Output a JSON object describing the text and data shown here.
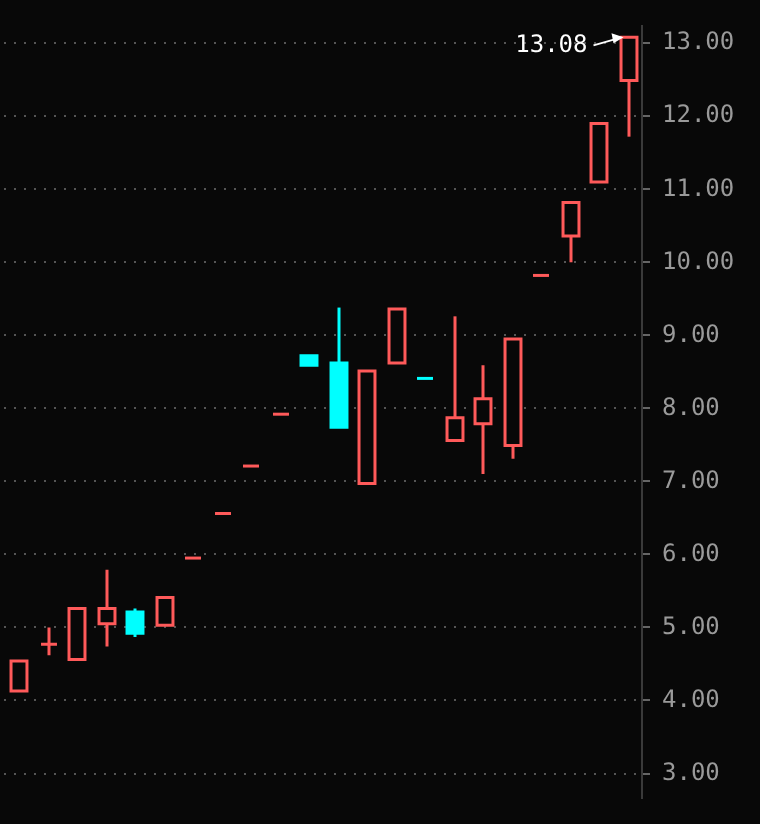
{
  "chart_data": {
    "type": "candlestick",
    "categories": [
      null,
      null,
      null,
      null,
      null,
      null,
      null,
      null,
      null,
      null,
      null,
      null,
      null,
      null,
      null,
      null,
      null,
      null,
      null,
      null,
      null,
      null
    ],
    "ohlc": [
      [
        4.13,
        4.54,
        4.13,
        4.54
      ],
      [
        4.77,
        5.0,
        4.62,
        4.77
      ],
      [
        4.56,
        5.26,
        4.56,
        5.26
      ],
      [
        5.05,
        5.79,
        4.74,
        5.26
      ],
      [
        5.21,
        5.26,
        4.87,
        4.92
      ],
      [
        5.03,
        5.41,
        5.03,
        5.41
      ],
      [
        5.95,
        5.95,
        5.95,
        5.95
      ],
      [
        6.56,
        6.56,
        6.56,
        6.56
      ],
      [
        7.21,
        7.21,
        7.21,
        7.21
      ],
      [
        7.92,
        7.92,
        7.92,
        7.92
      ],
      [
        8.72,
        8.72,
        8.59,
        8.59
      ],
      [
        8.62,
        9.38,
        7.74,
        7.74
      ],
      [
        6.97,
        8.51,
        6.97,
        8.51
      ],
      [
        8.62,
        9.36,
        8.62,
        9.36
      ],
      [
        8.41,
        8.41,
        8.41,
        8.41
      ],
      [
        7.56,
        9.26,
        7.56,
        7.87
      ],
      [
        7.79,
        8.59,
        7.1,
        8.13
      ],
      [
        7.49,
        8.95,
        7.31,
        8.95
      ],
      [
        9.82,
        9.82,
        9.82,
        9.82
      ],
      [
        10.36,
        10.82,
        10.0,
        10.82
      ],
      [
        11.1,
        11.9,
        11.1,
        11.9
      ],
      [
        12.49,
        13.08,
        11.72,
        13.08
      ]
    ],
    "colors": [
      "#ff5a5a",
      "#ff5a5a",
      "#ff5a5a",
      "#ff5a5a",
      "#00ffff",
      "#ff5a5a",
      "#ff5a5a",
      "#ff5a5a",
      "#ff5a5a",
      "#ff5a5a",
      "#00ffff",
      "#00ffff",
      "#ff5a5a",
      "#ff5a5a",
      "#00ffff",
      "#ff5a5a",
      "#ff5a5a",
      "#ff5a5a",
      "#ff5a5a",
      "#ff5a5a",
      "#ff5a5a",
      "#ff5a5a"
    ],
    "ylim": [
      2.67,
      13.23
    ],
    "yticks": [
      {
        "value": 3,
        "label": "3.00"
      },
      {
        "value": 4,
        "label": "4.00"
      },
      {
        "value": 5,
        "label": "5.00"
      },
      {
        "value": 6,
        "label": "6.00"
      },
      {
        "value": 7,
        "label": "7.00"
      },
      {
        "value": 8,
        "label": "8.00"
      },
      {
        "value": 9,
        "label": "9.00"
      },
      {
        "value": 10,
        "label": "10.00"
      },
      {
        "value": 11,
        "label": "11.00"
      },
      {
        "value": 12,
        "label": "12.00"
      },
      {
        "value": 13,
        "label": "13.00"
      }
    ],
    "annotations": [
      "13.08"
    ],
    "grid": "y",
    "legend": false
  }
}
